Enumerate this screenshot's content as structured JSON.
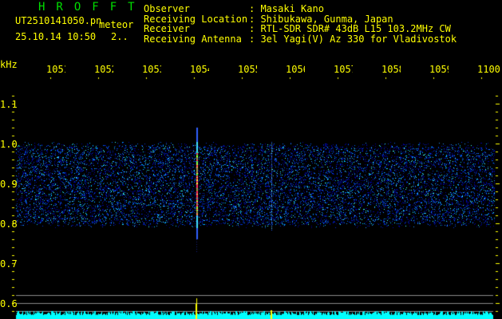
{
  "app_title": "HROFFT",
  "file": {
    "name": "UT2510141050.pn",
    "type": "meteor",
    "datetime": "25.10.14 10:50",
    "count": "2.."
  },
  "station": [
    {
      "label": "Observer",
      "value": "Masaki Kano"
    },
    {
      "label": "Receiving Location",
      "value": "Shibukawa, Gunma, Japan"
    },
    {
      "label": "Receiver",
      "value": "RTL-SDR SDR# 43dB L15 103.2MHz CW"
    },
    {
      "label": "Receiving Antenna",
      "value": "3el Yagi(V) Az 330 for Vladivostok"
    }
  ],
  "freq_axis": {
    "unit": "kHz",
    "labels": [
      "1051",
      "1052",
      "1053",
      "1054",
      "1055",
      "1056",
      "1057",
      "1058",
      "1059",
      "1100"
    ]
  },
  "y_axis": {
    "labels": [
      "1.1",
      "1.0",
      "0.9",
      "0.8",
      "0.7",
      "0.6"
    ]
  },
  "colors": {
    "text": "#ffff00",
    "title": "#00e000",
    "spectrum": "#00ffff",
    "signal": "#ff3060"
  }
}
